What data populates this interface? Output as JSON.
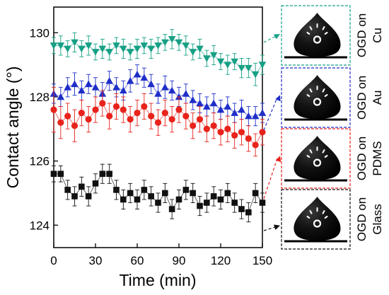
{
  "chart_data": {
    "type": "scatter",
    "xlabel": "Time (min)",
    "ylabel": "Contact angle (°)",
    "xlim": [
      0,
      150
    ],
    "ylim": [
      123.3,
      130.8
    ],
    "x_ticks": [
      0,
      30,
      60,
      90,
      120,
      150
    ],
    "y_ticks": [
      124,
      126,
      128,
      130
    ],
    "x_tick_labels": [
      "0",
      "30",
      "60",
      "90",
      "120",
      "150"
    ],
    "y_tick_labels": [
      "124",
      "126",
      "128",
      "130"
    ],
    "x": [
      0,
      5,
      10,
      15,
      20,
      25,
      30,
      35,
      40,
      45,
      50,
      55,
      60,
      65,
      70,
      75,
      80,
      85,
      90,
      95,
      100,
      105,
      110,
      115,
      120,
      125,
      130,
      135,
      140,
      145,
      150
    ],
    "series": [
      {
        "name": "OGD on Cu",
        "color": "#16a085",
        "marker": "triangle-down",
        "values": [
          129.6,
          129.6,
          129.5,
          129.7,
          129.5,
          129.6,
          129.4,
          129.5,
          129.4,
          129.6,
          129.5,
          129.4,
          129.5,
          129.6,
          129.5,
          129.6,
          129.7,
          129.8,
          129.7,
          129.6,
          129.4,
          129.5,
          129.2,
          129.3,
          129.1,
          129.0,
          129.1,
          128.9,
          128.9,
          128.7,
          129.0
        ],
        "errors": [
          0.25,
          0.3,
          0.25,
          0.3,
          0.25,
          0.3,
          0.25,
          0.3,
          0.25,
          0.25,
          0.3,
          0.25,
          0.3,
          0.25,
          0.3,
          0.25,
          0.25,
          0.3,
          0.25,
          0.3,
          0.25,
          0.3,
          0.25,
          0.3,
          0.25,
          0.3,
          0.25,
          0.3,
          0.3,
          0.35,
          0.3
        ]
      },
      {
        "name": "OGD on Au",
        "color": "#1f2ec8",
        "marker": "triangle-up",
        "values": [
          128.1,
          128.0,
          128.3,
          128.4,
          128.2,
          128.4,
          128.3,
          128.1,
          128.5,
          128.3,
          128.2,
          128.5,
          128.7,
          128.6,
          128.4,
          128.1,
          128.3,
          128.2,
          128.0,
          128.1,
          127.9,
          127.8,
          127.7,
          127.8,
          127.6,
          127.7,
          127.5,
          127.6,
          127.4,
          127.4,
          127.5
        ],
        "errors": [
          0.3,
          0.3,
          0.3,
          0.35,
          0.3,
          0.3,
          0.3,
          0.35,
          0.3,
          0.3,
          0.3,
          0.35,
          0.3,
          0.3,
          0.3,
          0.3,
          0.35,
          0.3,
          0.3,
          0.3,
          0.3,
          0.3,
          0.3,
          0.3,
          0.3,
          0.3,
          0.3,
          0.3,
          0.3,
          0.3,
          0.3
        ]
      },
      {
        "name": "OGD on PDMS",
        "color": "#e8231c",
        "marker": "circle",
        "values": [
          127.6,
          127.2,
          127.4,
          127.1,
          127.5,
          127.3,
          127.6,
          127.8,
          127.4,
          127.7,
          127.6,
          127.3,
          127.5,
          127.7,
          127.4,
          127.2,
          127.5,
          127.3,
          127.6,
          127.4,
          127.1,
          127.3,
          127.0,
          127.1,
          126.9,
          127.0,
          126.8,
          126.9,
          126.7,
          126.5,
          126.9
        ],
        "errors": [
          0.7,
          0.5,
          0.4,
          0.5,
          0.4,
          0.4,
          0.4,
          0.4,
          0.4,
          0.4,
          0.4,
          0.4,
          0.4,
          0.4,
          0.4,
          0.4,
          0.4,
          0.4,
          0.4,
          0.4,
          0.4,
          0.4,
          0.4,
          0.4,
          0.4,
          0.4,
          0.4,
          0.4,
          0.4,
          0.35,
          0.4
        ]
      },
      {
        "name": "OGD on Glass",
        "color": "#111111",
        "marker": "square",
        "values": [
          125.6,
          125.6,
          125.1,
          124.9,
          125.2,
          124.9,
          125.3,
          125.6,
          125.6,
          125.1,
          124.8,
          125.0,
          124.8,
          125.1,
          124.9,
          124.7,
          125.0,
          124.5,
          124.8,
          125.1,
          125.0,
          124.6,
          124.7,
          124.9,
          124.8,
          125.0,
          124.7,
          124.5,
          124.4,
          125.0,
          124.7
        ],
        "errors": [
          0.25,
          0.25,
          0.3,
          0.3,
          0.3,
          0.3,
          0.3,
          0.3,
          0.3,
          0.3,
          0.3,
          0.3,
          0.3,
          0.3,
          0.3,
          0.3,
          0.3,
          0.3,
          0.3,
          0.3,
          0.3,
          0.3,
          0.3,
          0.3,
          0.3,
          0.3,
          0.3,
          0.3,
          0.3,
          0.3,
          0.3
        ]
      }
    ]
  },
  "panels": [
    {
      "label": "OGD on",
      "sub": "Cu",
      "color": "#16a085"
    },
    {
      "label": "OGD on",
      "sub": "Au",
      "color": "#1f2ec8"
    },
    {
      "label": "OGD on",
      "sub": "PDMS",
      "color": "#e8231c"
    },
    {
      "label": "OGD on",
      "sub": "Glass",
      "color": "#111111"
    }
  ]
}
